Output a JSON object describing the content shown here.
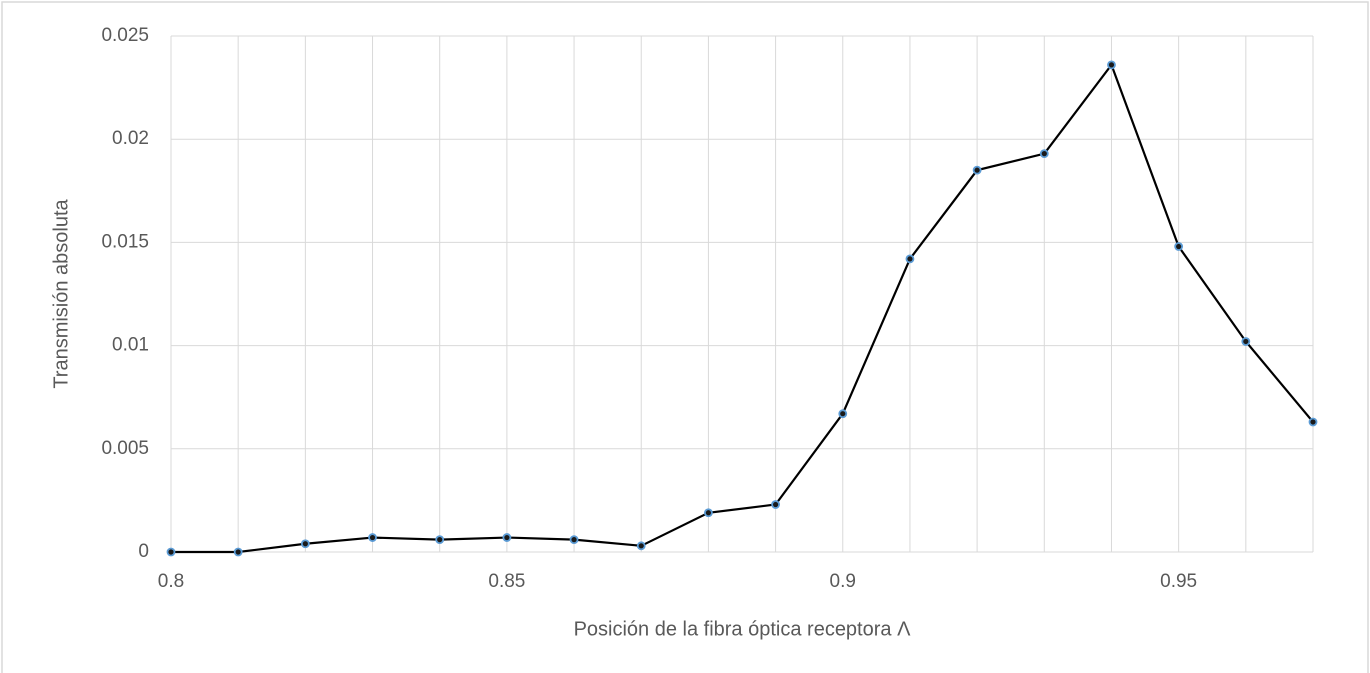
{
  "chart_data": {
    "type": "line",
    "x_label": "Posición de la fibra óptica receptora Λ",
    "y_label": "Transmisión absoluta",
    "x": [
      0.8,
      0.81,
      0.82,
      0.83,
      0.84,
      0.85,
      0.86,
      0.87,
      0.88,
      0.89,
      0.9,
      0.91,
      0.92,
      0.93,
      0.94,
      0.95,
      0.96,
      0.97
    ],
    "values": [
      0,
      0,
      0.0004,
      0.0007,
      0.0006,
      0.0007,
      0.0006,
      0.0003,
      0.0019,
      0.0023,
      0.0067,
      0.0142,
      0.0185,
      0.0193,
      0.0236,
      0.0148,
      0.0102,
      0.0063
    ],
    "color": "#000000",
    "marker_color": "#5b9bd5",
    "xlim": [
      0.8,
      0.97
    ],
    "xticks": [
      0.8,
      0.85,
      0.9,
      0.95
    ],
    "xgrid": [
      0.8,
      0.81,
      0.82,
      0.83,
      0.84,
      0.85,
      0.86,
      0.87,
      0.88,
      0.89,
      0.9,
      0.91,
      0.92,
      0.93,
      0.94,
      0.95,
      0.96,
      0.97
    ],
    "ylim": [
      0,
      0.025
    ],
    "yticks": [
      0,
      0.005,
      0.01,
      0.015,
      0.02,
      0.025
    ],
    "grid": true
  }
}
